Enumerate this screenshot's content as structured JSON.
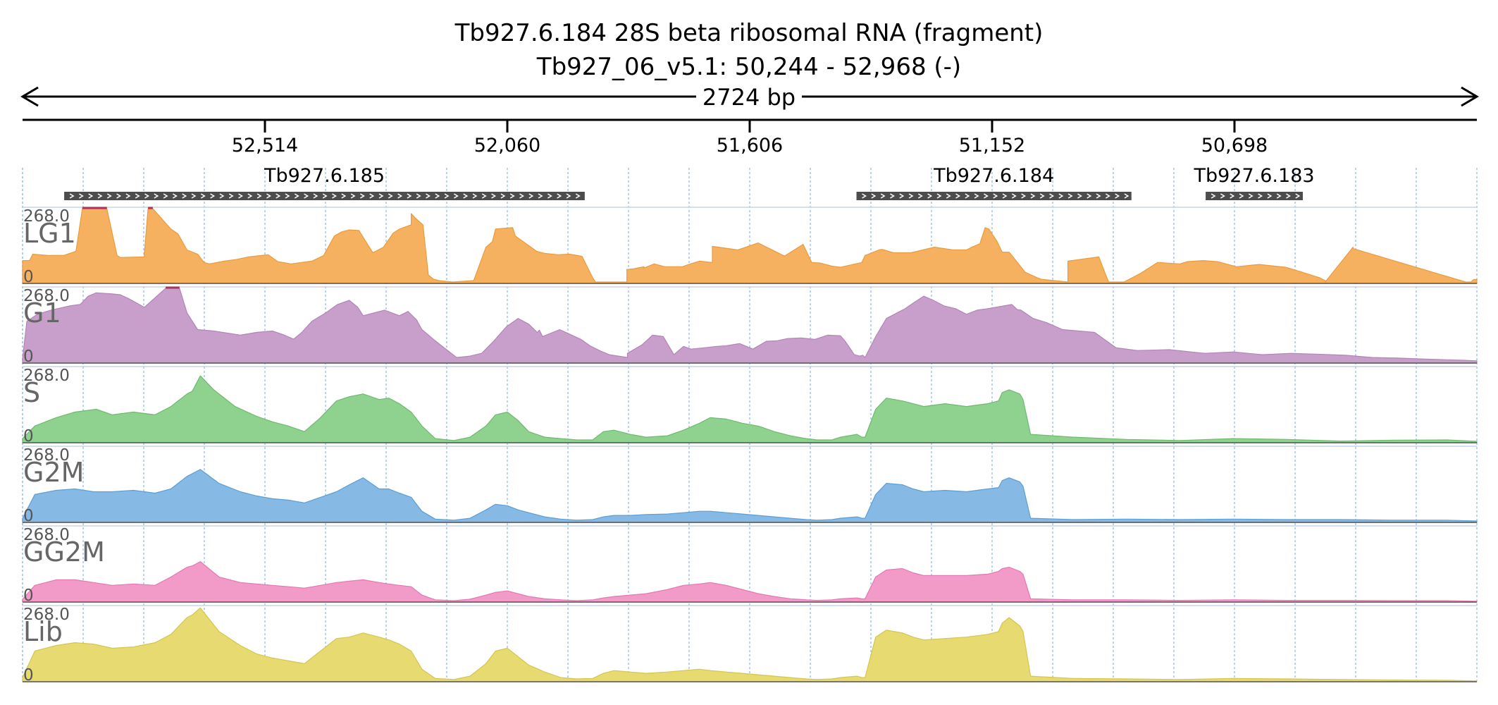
{
  "header": {
    "title": "Tb927.6.184  28S beta ribosomal RNA (fragment)",
    "location": "Tb927_06_v5.1: 50,244 - 52,968 (-)",
    "span": "2724 bp"
  },
  "axis": {
    "start": 52968,
    "end": 50244,
    "ticks": [
      {
        "value": 52514,
        "label": "52,514"
      },
      {
        "value": 52060,
        "label": "52,060"
      },
      {
        "value": 51606,
        "label": "51,606"
      },
      {
        "value": 51152,
        "label": "51,152"
      },
      {
        "value": 50698,
        "label": "50,698"
      }
    ]
  },
  "genes": [
    {
      "name": "Tb927.6.185",
      "start": 52890,
      "end": 51915,
      "strand": "-"
    },
    {
      "name": "Tb927.6.184",
      "start": 51406,
      "end": 50891,
      "strand": "-"
    },
    {
      "name": "Tb927.6.183",
      "start": 50752,
      "end": 50570,
      "strand": "-"
    }
  ],
  "chart_data": {
    "type": "area",
    "xlabel": "",
    "ylabel": "",
    "ylim": [
      0,
      268.0
    ],
    "xlim": [
      52968,
      50244
    ],
    "x_reversed": true,
    "grid": true,
    "series": [
      {
        "name": "LG1",
        "color": "#f5b060",
        "stroke": "#e89c3e",
        "x": [
          52968,
          52955,
          52949,
          52920,
          52890,
          52868,
          52856,
          52810,
          52791,
          52785,
          52740,
          52740,
          52733,
          52724,
          52690,
          52677,
          52660,
          52640,
          52628,
          52618,
          52590,
          52570,
          52545,
          52508,
          52490,
          52465,
          52426,
          52404,
          52384,
          52370,
          52356,
          52338,
          52312,
          52292,
          52274,
          52262,
          52255,
          52240,
          52240,
          52230,
          52218,
          52208,
          52198,
          52188,
          52163,
          52123,
          52100,
          52088,
          52082,
          52050,
          52045,
          52005,
          51990,
          51965,
          51944,
          51920,
          51900,
          51895,
          51836,
          51836,
          51824,
          51804,
          51804,
          51785,
          51765,
          51732,
          51720,
          51700,
          51676,
          51676,
          51628,
          51590,
          51541,
          51506,
          51490,
          51474,
          51452,
          51436,
          51396,
          51390,
          51364,
          51358,
          51337,
          51304,
          51260,
          51225,
          51200,
          51190,
          51175,
          51165,
          51158,
          51143,
          51133,
          51120,
          51115,
          51090,
          51067,
          51060,
          51010,
          51010,
          50952,
          50952,
          50934,
          50905,
          50875,
          50842,
          50800,
          50786,
          50757,
          50730,
          50694,
          50652,
          50602,
          50576,
          50555,
          50538,
          50528,
          50528,
          50476,
          50476,
          50265,
          50255,
          50250,
          50244
        ],
        "y": [
          82,
          82,
          105,
          100,
          101,
          115,
          268,
          268,
          100,
          93,
          95,
          104,
          268,
          268,
          195,
          178,
          120,
          105,
          75,
          70,
          80,
          85,
          95,
          103,
          78,
          70,
          80,
          100,
          170,
          185,
          192,
          190,
          110,
          130,
          180,
          195,
          200,
          210,
          250,
          230,
          210,
          30,
          15,
          10,
          5,
          10,
          130,
          150,
          195,
          200,
          170,
          115,
          108,
          103,
          105,
          97,
          20,
          5,
          5,
          50,
          52,
          60,
          55,
          70,
          60,
          60,
          68,
          80,
          75,
          133,
          120,
          145,
          98,
          140,
          75,
          73,
          62,
          58,
          75,
          100,
          120,
          122,
          110,
          110,
          130,
          120,
          120,
          130,
          142,
          200,
          195,
          152,
          112,
          112,
          100,
          40,
          20,
          15,
          5,
          80,
          95,
          95,
          5,
          5,
          35,
          75,
          70,
          78,
          82,
          78,
          60,
          68,
          58,
          43,
          30,
          20,
          10,
          5,
          130,
          125,
          5,
          5,
          14,
          14
        ]
      },
      {
        "name": "G1",
        "color": "#c89fcb",
        "stroke": "#b384b8",
        "x": [
          52968,
          52960,
          52940,
          52915,
          52880,
          52860,
          52845,
          52830,
          52800,
          52785,
          52768,
          52740,
          52700,
          52674,
          52660,
          52640,
          52610,
          52560,
          52530,
          52500,
          52480,
          52460,
          52445,
          52426,
          52400,
          52378,
          52356,
          52340,
          52330,
          52310,
          52290,
          52262,
          52246,
          52230,
          52220,
          52195,
          52155,
          52130,
          52108,
          52085,
          52062,
          52040,
          52020,
          52004,
          52000,
          51994,
          51962,
          51922,
          51905,
          51884,
          51869,
          51835,
          51835,
          51808,
          51788,
          51768,
          51748,
          51730,
          51716,
          51690,
          51668,
          51650,
          51625,
          51600,
          51575,
          51555,
          51535,
          51510,
          51484,
          51460,
          51436,
          51426,
          51410,
          51400,
          51394,
          51390,
          51370,
          51350,
          51330,
          51315,
          51300,
          51280,
          51262,
          51242,
          51220,
          51200,
          51180,
          51160,
          51145,
          51130,
          51115,
          51105,
          51098,
          51075,
          51050,
          51020,
          50960,
          50920,
          50880,
          50820,
          50754,
          50700,
          50646,
          50592,
          50546,
          50490,
          50440,
          50393,
          50335,
          50300,
          50270,
          50244
        ],
        "y": [
          15,
          150,
          175,
          190,
          205,
          210,
          240,
          252,
          248,
          245,
          230,
          200,
          268,
          268,
          180,
          120,
          115,
          100,
          110,
          115,
          102,
          86,
          110,
          150,
          180,
          210,
          225,
          200,
          170,
          180,
          190,
          170,
          185,
          155,
          120,
          80,
          20,
          25,
          35,
          80,
          130,
          160,
          140,
          110,
          118,
          95,
          120,
          85,
          62,
          42,
          30,
          20,
          35,
          65,
          100,
          95,
          30,
          60,
          50,
          55,
          60,
          62,
          70,
          50,
          78,
          80,
          88,
          90,
          85,
          100,
          98,
          75,
          30,
          25,
          28,
          20,
          95,
          160,
          180,
          195,
          215,
          240,
          225,
          205,
          195,
          175,
          190,
          195,
          200,
          205,
          210,
          192,
          190,
          160,
          145,
          120,
          110,
          55,
          45,
          48,
          35,
          40,
          30,
          35,
          32,
          28,
          20,
          18,
          14,
          12,
          10,
          8
        ],
        "mark_at": [
          52660
        ]
      },
      {
        "name": "S",
        "color": "#8fd18f",
        "stroke": "#6dbb6d",
        "x": [
          52968,
          52945,
          52905,
          52870,
          52830,
          52800,
          52760,
          52720,
          52690,
          52660,
          52650,
          52635,
          52610,
          52570,
          52530,
          52500,
          52470,
          52440,
          52410,
          52380,
          52356,
          52330,
          52300,
          52282,
          52262,
          52240,
          52220,
          52195,
          52160,
          52130,
          52100,
          52082,
          52060,
          52040,
          52020,
          51990,
          51960,
          51930,
          51900,
          51880,
          51860,
          51830,
          51800,
          51760,
          51730,
          51700,
          51680,
          51650,
          51620,
          51590,
          51560,
          51530,
          51500,
          51480,
          51452,
          51436,
          51405,
          51396,
          51390,
          51370,
          51350,
          51320,
          51300,
          51280,
          51240,
          51200,
          51160,
          51140,
          51133,
          51120,
          51100,
          51094,
          51080,
          51000,
          50900,
          50800,
          50700,
          50600,
          50500,
          50400,
          50300,
          50244
        ],
        "y": [
          15,
          60,
          90,
          110,
          120,
          100,
          110,
          100,
          130,
          175,
          185,
          240,
          190,
          130,
          95,
          75,
          60,
          40,
          90,
          150,
          165,
          175,
          155,
          160,
          140,
          110,
          60,
          15,
          8,
          20,
          60,
          100,
          110,
          80,
          40,
          20,
          15,
          10,
          10,
          40,
          45,
          30,
          20,
          25,
          45,
          70,
          90,
          85,
          70,
          60,
          40,
          25,
          15,
          10,
          10,
          20,
          30,
          20,
          20,
          120,
          160,
          150,
          140,
          130,
          140,
          130,
          140,
          150,
          180,
          190,
          175,
          155,
          30,
          20,
          12,
          8,
          15,
          12,
          6,
          9,
          10,
          5
        ]
      },
      {
        "name": "G2M",
        "color": "#86b9e4",
        "stroke": "#5b9fd6",
        "x": [
          52968,
          52945,
          52905,
          52870,
          52835,
          52800,
          52760,
          52720,
          52690,
          52660,
          52650,
          52635,
          52600,
          52560,
          52530,
          52500,
          52470,
          52440,
          52410,
          52380,
          52356,
          52330,
          52300,
          52282,
          52262,
          52240,
          52220,
          52195,
          52160,
          52130,
          52100,
          52082,
          52060,
          52040,
          52020,
          51990,
          51960,
          51930,
          51900,
          51880,
          51860,
          51830,
          51800,
          51760,
          51730,
          51700,
          51680,
          51650,
          51620,
          51590,
          51560,
          51530,
          51500,
          51480,
          51452,
          51436,
          51405,
          51396,
          51390,
          51370,
          51350,
          51320,
          51300,
          51280,
          51240,
          51200,
          51160,
          51140,
          51133,
          51120,
          51100,
          51094,
          51080,
          51000,
          50900,
          50800,
          50700,
          50600,
          50500,
          50400,
          50300,
          50244
        ],
        "y": [
          15,
          100,
          115,
          120,
          110,
          110,
          115,
          105,
          120,
          165,
          175,
          190,
          140,
          110,
          95,
          85,
          80,
          70,
          90,
          110,
          135,
          160,
          120,
          120,
          105,
          90,
          40,
          12,
          8,
          15,
          45,
          65,
          60,
          45,
          35,
          20,
          12,
          8,
          10,
          20,
          25,
          25,
          28,
          30,
          35,
          40,
          40,
          35,
          30,
          25,
          20,
          15,
          10,
          8,
          10,
          15,
          20,
          15,
          15,
          100,
          140,
          135,
          120,
          110,
          115,
          110,
          120,
          125,
          150,
          160,
          145,
          130,
          15,
          10,
          12,
          10,
          12,
          10,
          10,
          8,
          8,
          5
        ]
      },
      {
        "name": "GG2M",
        "color": "#f29ac8",
        "stroke": "#e378b3",
        "x": [
          52968,
          52945,
          52905,
          52870,
          52835,
          52800,
          52760,
          52720,
          52690,
          52660,
          52650,
          52635,
          52600,
          52560,
          52530,
          52500,
          52470,
          52440,
          52410,
          52380,
          52356,
          52330,
          52300,
          52282,
          52262,
          52240,
          52220,
          52195,
          52160,
          52130,
          52100,
          52082,
          52060,
          52040,
          52020,
          51990,
          51960,
          51930,
          51900,
          51880,
          51860,
          51830,
          51800,
          51760,
          51730,
          51700,
          51680,
          51650,
          51620,
          51590,
          51560,
          51530,
          51500,
          51480,
          51452,
          51436,
          51405,
          51396,
          51390,
          51370,
          51350,
          51320,
          51300,
          51280,
          51240,
          51200,
          51160,
          51140,
          51133,
          51120,
          51100,
          51094,
          51080,
          51000,
          50900,
          50800,
          50700,
          50600,
          50500,
          50400,
          50300,
          50244
        ],
        "y": [
          10,
          60,
          80,
          80,
          70,
          60,
          65,
          60,
          90,
          125,
          130,
          145,
          90,
          70,
          65,
          60,
          55,
          50,
          60,
          70,
          75,
          80,
          70,
          65,
          60,
          55,
          25,
          8,
          5,
          10,
          25,
          35,
          40,
          30,
          20,
          12,
          8,
          5,
          8,
          15,
          20,
          25,
          30,
          45,
          60,
          65,
          70,
          60,
          45,
          30,
          20,
          12,
          8,
          6,
          8,
          12,
          15,
          12,
          12,
          90,
          115,
          120,
          105,
          95,
          95,
          95,
          100,
          110,
          120,
          125,
          110,
          100,
          12,
          8,
          8,
          6,
          8,
          6,
          6,
          5,
          5,
          3
        ]
      },
      {
        "name": "Lib",
        "color": "#e6da70",
        "stroke": "#d4c64e",
        "x": [
          52968,
          52945,
          52905,
          52870,
          52835,
          52800,
          52760,
          52720,
          52690,
          52660,
          52650,
          52635,
          52600,
          52560,
          52530,
          52500,
          52470,
          52440,
          52410,
          52380,
          52356,
          52330,
          52300,
          52282,
          52262,
          52240,
          52220,
          52195,
          52160,
          52130,
          52100,
          52082,
          52060,
          52040,
          52020,
          51990,
          51960,
          51930,
          51900,
          51880,
          51860,
          51830,
          51800,
          51760,
          51730,
          51700,
          51680,
          51650,
          51620,
          51590,
          51560,
          51530,
          51500,
          51480,
          51452,
          51436,
          51405,
          51396,
          51390,
          51370,
          51350,
          51320,
          51300,
          51280,
          51240,
          51200,
          51160,
          51140,
          51133,
          51120,
          51100,
          51094,
          51080,
          51000,
          50900,
          50800,
          50700,
          50600,
          50500,
          50400,
          50300,
          50244
        ],
        "y": [
          15,
          110,
          130,
          140,
          135,
          120,
          125,
          140,
          170,
          230,
          240,
          265,
          180,
          130,
          100,
          85,
          75,
          65,
          110,
          155,
          160,
          175,
          160,
          150,
          135,
          110,
          45,
          12,
          8,
          20,
          65,
          110,
          120,
          90,
          60,
          35,
          15,
          10,
          12,
          30,
          40,
          35,
          30,
          35,
          40,
          45,
          40,
          35,
          30,
          25,
          20,
          15,
          10,
          8,
          10,
          15,
          20,
          15,
          15,
          160,
          185,
          175,
          160,
          150,
          155,
          160,
          170,
          180,
          210,
          230,
          200,
          180,
          20,
          12,
          10,
          8,
          12,
          10,
          8,
          6,
          5,
          3
        ]
      }
    ]
  }
}
